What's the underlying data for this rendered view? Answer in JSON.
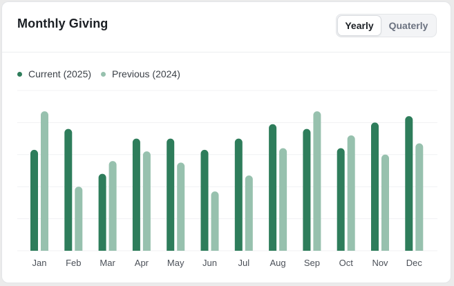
{
  "header": {
    "title": "Monthly Giving",
    "toggle": {
      "options": [
        "Yearly",
        "Quaterly"
      ],
      "selected": "Yearly"
    }
  },
  "colors": {
    "current": "#2e7d5b",
    "previous": "#97c1ae",
    "grid": "#f0f1f3",
    "axis_text": "#4b5058"
  },
  "chart_data": {
    "type": "bar",
    "title": "Monthly Giving",
    "xlabel": "",
    "ylabel": "",
    "legend_position": "top-left",
    "grid": true,
    "ylim": [
      0,
      100
    ],
    "categories": [
      "Jan",
      "Feb",
      "Mar",
      "Apr",
      "May",
      "Jun",
      "Jul",
      "Aug",
      "Sep",
      "Oct",
      "Nov",
      "Dec"
    ],
    "series": [
      {
        "name": "Current (2025)",
        "values": [
          63,
          76,
          48,
          70,
          70,
          63,
          70,
          79,
          76,
          64,
          80,
          84
        ]
      },
      {
        "name": "Previous (2024)",
        "values": [
          87,
          40,
          56,
          62,
          55,
          37,
          47,
          64,
          87,
          72,
          60,
          67
        ]
      }
    ]
  }
}
